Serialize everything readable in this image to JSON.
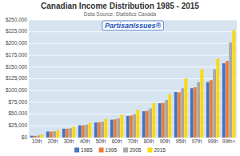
{
  "chart_data": {
    "type": "bar",
    "title": "Canadian Income Distribution 1985 - 2015",
    "subtitle": "Data Source: Statistics Canada",
    "annotations": [
      "PartisanIssues®"
    ],
    "categories": [
      "10th",
      "20th",
      "30th",
      "40th",
      "50th",
      "60th",
      "70th",
      "80th",
      "90th",
      "95th",
      "97th",
      "99th",
      "99th+"
    ],
    "series": [
      {
        "name": "1985",
        "color": "#4472C4",
        "values": [
          4000,
          13000,
          19000,
          26000,
          32000,
          38000,
          46000,
          56000,
          73000,
          97000,
          105000,
          118000,
          158000
        ]
      },
      {
        "name": "1995",
        "color": "#ED7D31",
        "values": [
          3500,
          12500,
          19000,
          26000,
          32500,
          39000,
          47000,
          57000,
          74000,
          96000,
          107000,
          122000,
          163000
        ]
      },
      {
        "name": "2005",
        "color": "#A9A9A9",
        "values": [
          4500,
          13500,
          20000,
          27500,
          34000,
          41000,
          50000,
          62000,
          80000,
          105000,
          118000,
          145000,
          202000
        ]
      },
      {
        "name": "2015",
        "color": "#FFD700",
        "values": [
          6500,
          16000,
          23500,
          31000,
          39500,
          48500,
          59000,
          73000,
          92000,
          126000,
          145000,
          168000,
          228000
        ]
      }
    ],
    "ylim": [
      0,
      250000
    ],
    "yticks": [
      {
        "value": 0,
        "label": "$0"
      },
      {
        "value": 25000,
        "label": "$25,000"
      },
      {
        "value": 50000,
        "label": "$50,000"
      },
      {
        "value": 75000,
        "label": "$75,000"
      },
      {
        "value": 100000,
        "label": "$100,000"
      },
      {
        "value": 125000,
        "label": "$125,000"
      },
      {
        "value": 150000,
        "label": "$150,000"
      },
      {
        "value": 175000,
        "label": "$175,000"
      },
      {
        "value": 200000,
        "label": "$200,000"
      },
      {
        "value": 225000,
        "label": "$225,000"
      },
      {
        "value": 250000,
        "label": "$250,000"
      }
    ],
    "grid": true,
    "legend": "bottom"
  }
}
